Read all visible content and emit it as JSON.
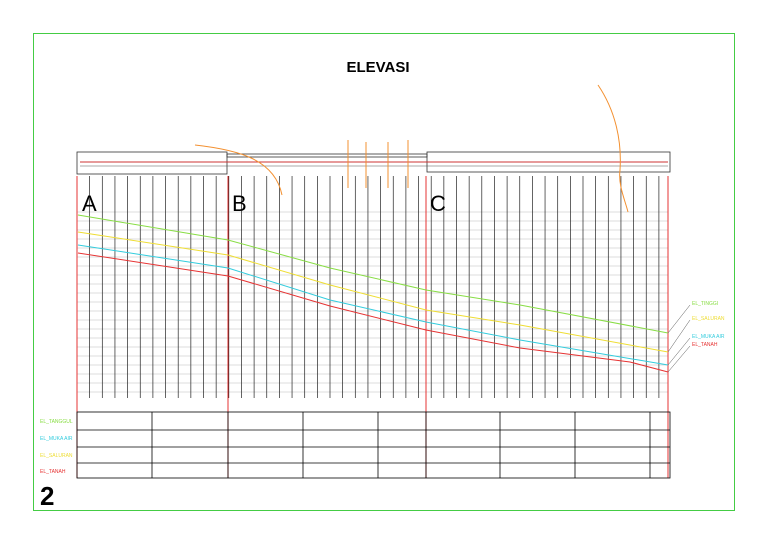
{
  "title": "ELEVASI",
  "sections": [
    "A",
    "B",
    "C"
  ],
  "sheet_number": "2",
  "row_labels": [
    "EL_TANGGUL",
    "EL_MUKA AIR",
    "EL_SALURAN",
    "EL_TANAH"
  ],
  "legend": [
    "EL_TINGGI",
    "EL_SALURAN",
    "EL_MUKA AIR",
    "EL_TANAH"
  ]
}
